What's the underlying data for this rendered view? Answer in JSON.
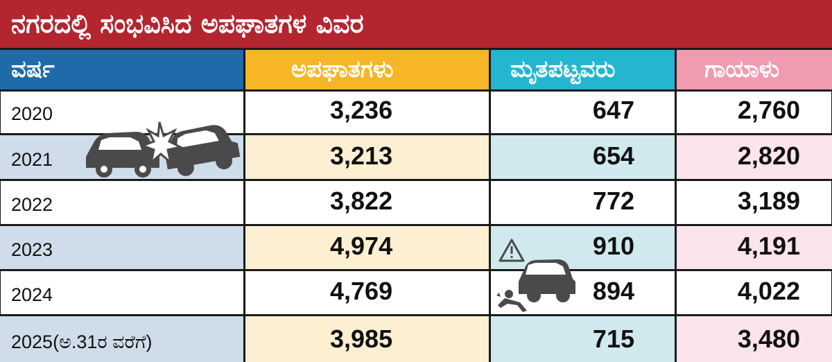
{
  "title": "ನಗರದಲ್ಲಿ ಸಂಭವಿಸಿದ ಅಪಘಾತಗಳ ವಿವರ",
  "columns": [
    "ವರ್ಷ",
    "ಅಪಘಾತಗಳು",
    "ಮೃತಪಟ್ಟವರು",
    "ಗಾಯಾಳು"
  ],
  "rows": [
    {
      "year": "2020",
      "accidents": "3,236",
      "deaths": "647",
      "injured": "2,760"
    },
    {
      "year": "2021",
      "accidents": "3,213",
      "deaths": "654",
      "injured": "2,820"
    },
    {
      "year": "2022",
      "accidents": "3,822",
      "deaths": "772",
      "injured": "3,189"
    },
    {
      "year": "2023",
      "accidents": "4,974",
      "deaths": "910",
      "injured": "4,191"
    },
    {
      "year": "2024",
      "accidents": "4,769",
      "deaths": "894",
      "injured": "4,022"
    },
    {
      "year": "2025(ಅ.31ರ ವರೆಗೆ)",
      "accidents": "3,985",
      "deaths": "715",
      "injured": "3,480"
    }
  ],
  "colors": {
    "title_bg": "#b3252f",
    "year_header": "#1f6aa8",
    "accidents_header": "#f6b625",
    "deaths_header": "#24b6d1",
    "injured_header": "#f19bb0"
  },
  "icons": [
    "car-crash-icon",
    "warning-icon",
    "pedestrian-hit-icon"
  ]
}
